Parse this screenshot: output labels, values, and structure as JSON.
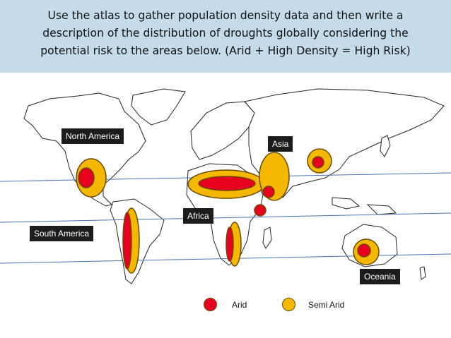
{
  "header": {
    "line1": "Use the atlas to gather population density data and then write a",
    "line2": "description of the distribution of droughts globally considering the",
    "line3": "potential risk to the areas below. (Arid + High Density  = High Risk)"
  },
  "regions": {
    "north_america": "North America",
    "south_america": "South America",
    "africa": "Africa",
    "asia": "Asia",
    "oceania": "Oceania"
  },
  "legend": {
    "arid": "Arid",
    "semi_arid": "Semi Arid"
  },
  "colors": {
    "arid": "#e8001f",
    "semi_arid": "#f5b800",
    "header_bg": "#c5dbe9",
    "latitude_line": "#4a72b0"
  }
}
